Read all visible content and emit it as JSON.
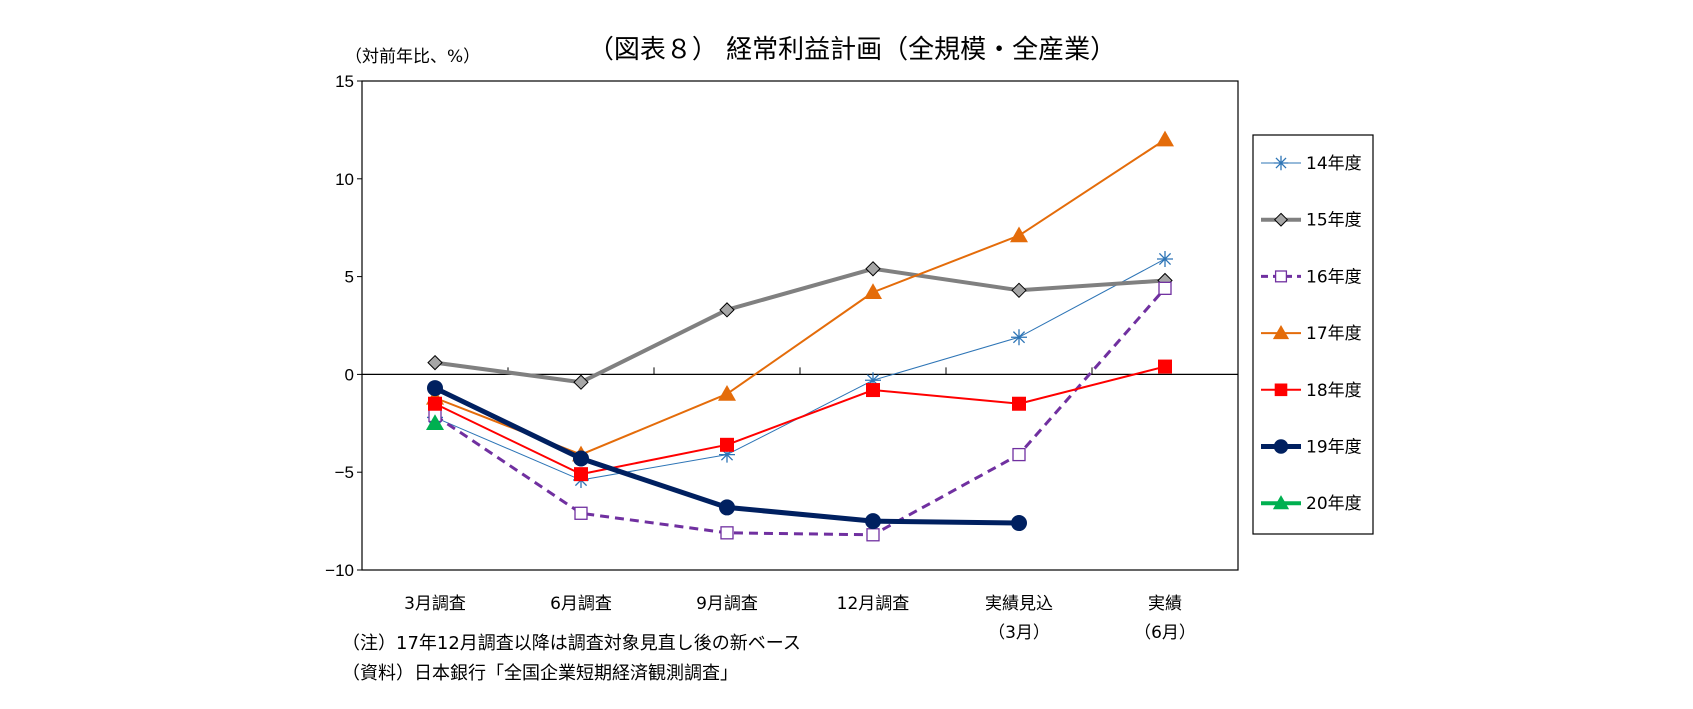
{
  "chart_data": {
    "type": "line",
    "title": "（図表８） 経常利益計画（全規模・全産業）",
    "ylabel": "（対前年比、%）",
    "xlabel": "",
    "ylim": [
      -10,
      15
    ],
    "yticks": [
      "15",
      "10",
      "5",
      "0",
      "−5",
      "−10"
    ],
    "ytick_values": [
      15,
      10,
      5,
      0,
      -5,
      -10
    ],
    "categories": [
      "3月調査",
      "6月調査",
      "9月調査",
      "12月調査",
      "実績見込",
      "実績"
    ],
    "category_sublabels": [
      "",
      "",
      "",
      "",
      "（3月）",
      "（6月）"
    ],
    "grid": false,
    "legend_position": "right",
    "series": [
      {
        "name": "14年度",
        "color": "#2E75B6",
        "marker": "star",
        "dash": false,
        "width": 1,
        "values": [
          -2.2,
          -5.4,
          -4.1,
          -0.3,
          1.9,
          5.9
        ]
      },
      {
        "name": "15年度",
        "color": "#808080",
        "marker": "diamond",
        "dash": false,
        "width": 4,
        "values": [
          0.6,
          -0.4,
          3.3,
          5.4,
          4.3,
          4.8
        ]
      },
      {
        "name": "16年度",
        "color": "#7030A0",
        "marker": "hollow-square",
        "dash": true,
        "width": 3,
        "values": [
          -2.1,
          -7.1,
          -8.1,
          -8.2,
          -4.1,
          4.4
        ]
      },
      {
        "name": "17年度",
        "color": "#E46C0A",
        "marker": "triangle",
        "dash": false,
        "width": 2,
        "values": [
          -1.2,
          -4.1,
          -1.0,
          4.2,
          7.1,
          12.0
        ]
      },
      {
        "name": "18年度",
        "color": "#FF0000",
        "marker": "square",
        "dash": false,
        "width": 2,
        "values": [
          -1.5,
          -5.1,
          -3.6,
          -0.8,
          -1.5,
          0.4
        ]
      },
      {
        "name": "19年度",
        "color": "#002060",
        "marker": "circle",
        "dash": false,
        "width": 5,
        "values": [
          -0.7,
          -4.3,
          -6.8,
          -7.5,
          -7.6,
          null
        ]
      },
      {
        "name": "20年度",
        "color": "#00B050",
        "marker": "triangle",
        "dash": false,
        "width": 4,
        "values": [
          -2.5,
          null,
          null,
          null,
          null,
          null
        ]
      }
    ]
  },
  "notes": [
    "（注）17年12月調査以降は調査対象見直し後の新ベース",
    "（資料）日本銀行「全国企業短期経済観測調査」"
  ]
}
